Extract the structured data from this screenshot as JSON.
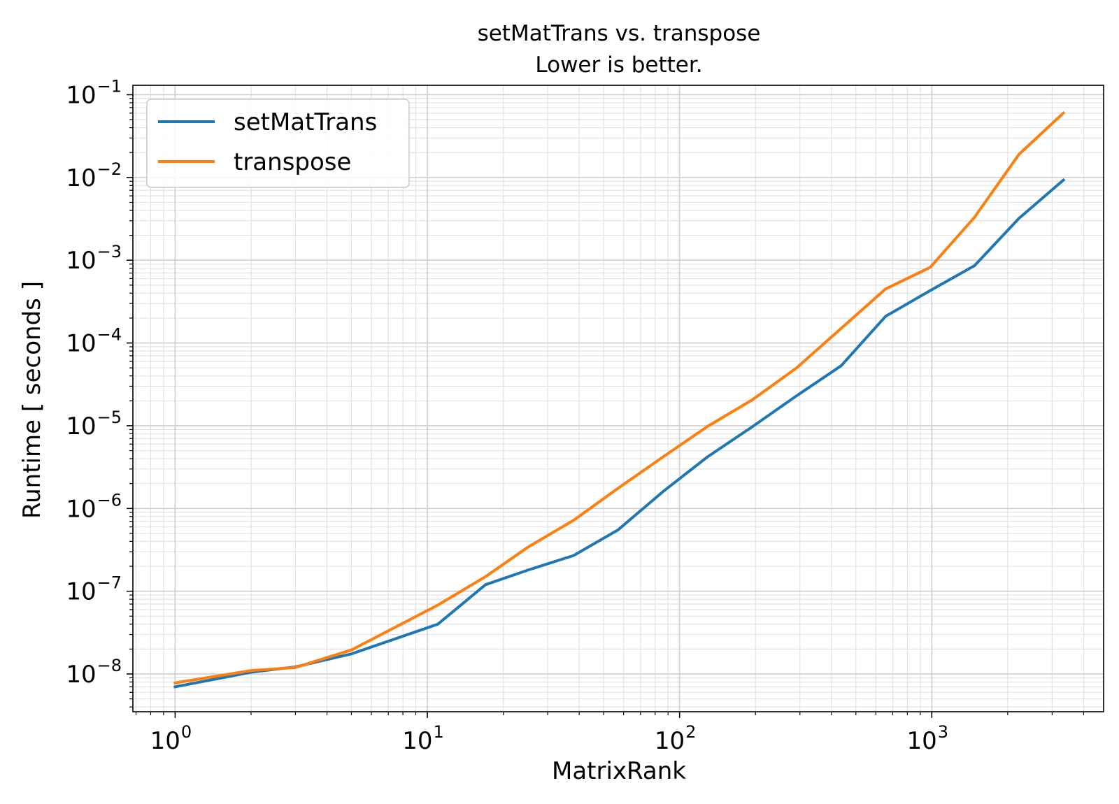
{
  "chart_data": {
    "type": "line",
    "title": "setMatTrans vs. transpose",
    "subtitle": "Lower is better.",
    "xlabel": "MatrixRank",
    "ylabel": "Runtime [ seconds ]",
    "xscale": "log",
    "yscale": "log",
    "xlim": [
      0.68,
      4800
    ],
    "ylim": [
      3.5e-09,
      0.13
    ],
    "grid": true,
    "grid_minor": true,
    "legend_position": "top-left",
    "x_ticks": [
      {
        "value": 1,
        "base": "10",
        "exp": "0"
      },
      {
        "value": 10,
        "base": "10",
        "exp": "1"
      },
      {
        "value": 100,
        "base": "10",
        "exp": "2"
      },
      {
        "value": 1000,
        "base": "10",
        "exp": "3"
      }
    ],
    "y_ticks": [
      {
        "value": 1e-08,
        "base": "10",
        "exp": "−8"
      },
      {
        "value": 1e-07,
        "base": "10",
        "exp": "−7"
      },
      {
        "value": 1e-06,
        "base": "10",
        "exp": "−6"
      },
      {
        "value": 1e-05,
        "base": "10",
        "exp": "−5"
      },
      {
        "value": 0.0001,
        "base": "10",
        "exp": "−4"
      },
      {
        "value": 0.001,
        "base": "10",
        "exp": "−3"
      },
      {
        "value": 0.01,
        "base": "10",
        "exp": "−2"
      },
      {
        "value": 0.1,
        "base": "10",
        "exp": "−1"
      }
    ],
    "x": [
      1,
      2,
      3,
      5,
      11,
      17,
      25,
      38,
      57,
      86,
      129,
      194,
      291,
      437,
      656,
      985,
      1477,
      2216,
      3325
    ],
    "series": [
      {
        "name": "setMatTrans",
        "color": "#1f77b4",
        "values": [
          7e-09,
          1.05e-08,
          1.22e-08,
          1.75e-08,
          4e-08,
          1.2e-07,
          1.8e-07,
          2.7e-07,
          5.5e-07,
          1.6e-06,
          4.2e-06,
          9.7e-06,
          2.3e-05,
          5.3e-05,
          0.00021,
          0.00043,
          0.00086,
          0.0032,
          0.0093
        ]
      },
      {
        "name": "transpose",
        "color": "#ff7f0e",
        "values": [
          7.8e-09,
          1.1e-08,
          1.2e-08,
          1.95e-08,
          6.8e-08,
          1.5e-07,
          3.4e-07,
          7.2e-07,
          1.75e-06,
          4.2e-06,
          9.8e-06,
          2.05e-05,
          5e-05,
          0.00015,
          0.00045,
          0.00082,
          0.0033,
          0.019,
          0.06
        ]
      }
    ]
  }
}
